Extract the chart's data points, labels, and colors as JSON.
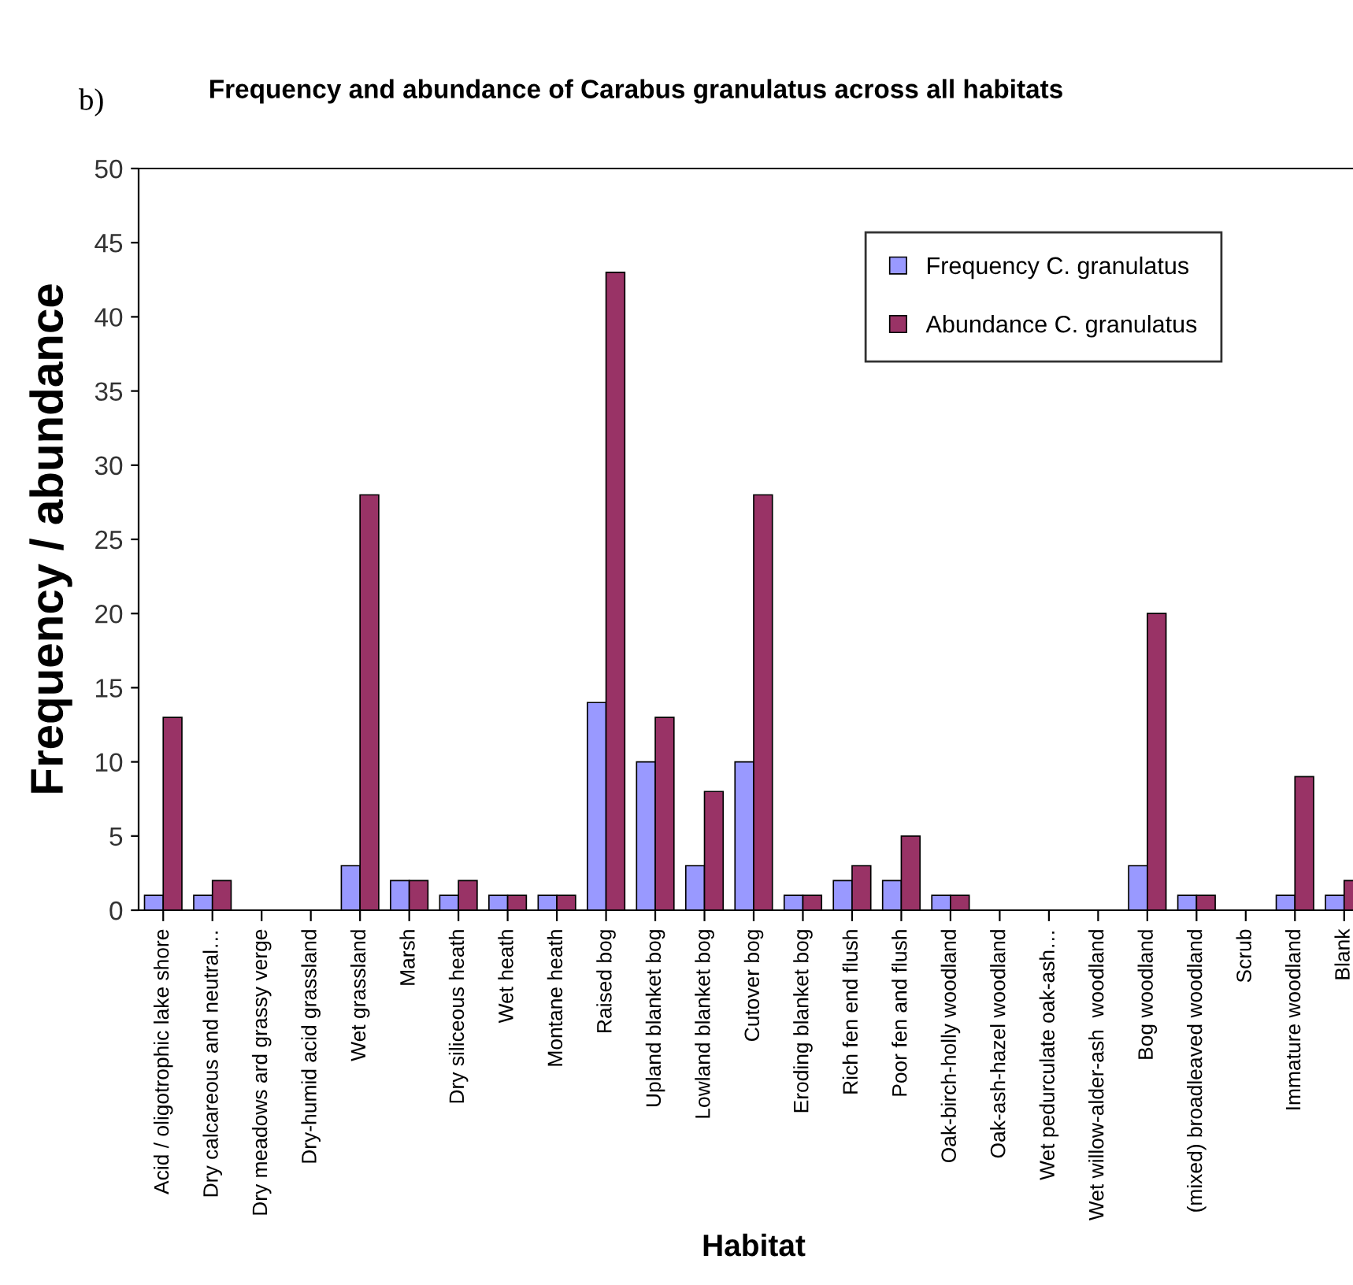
{
  "chart_data": {
    "type": "bar",
    "title": "Frequency and abundance of Carabus granulatus across all habitats",
    "xlabel": "Habitat",
    "ylabel": "Frequency / abundance",
    "annotations": [
      "b)"
    ],
    "categories": [
      "Acid / oligotrophic lake shore",
      "Dry calcareous and neutral…",
      "Dry meadows ard grassy verge",
      "Dry-humid acid grassland",
      "Wet grassland",
      "Marsh",
      "Dry siliceous heath",
      "Wet heath",
      "Montane heath",
      "Raised bog",
      "Upland blanket bog",
      "Lowland blanket bog",
      "Cutover bog",
      "Eroding blanket bog",
      "Rich fen end flush",
      "Poor fen and flush",
      "Oak-birch-holly woodland",
      "Oak-ash-hazel woodland",
      "Wet pedurculate oak-ash…",
      "Wet willow-alder-ash  woodland",
      "Bog woodland",
      "(mixed) broadleaved woodland",
      "Scrub",
      "Immature woodland",
      "Blank"
    ],
    "series": [
      {
        "name": "Frequency C. granulatus",
        "color": "#9999ff",
        "values": [
          1,
          1,
          0,
          0,
          3,
          2,
          1,
          1,
          1,
          14,
          10,
          3,
          10,
          1,
          2,
          2,
          1,
          0,
          0,
          0,
          3,
          1,
          0,
          1,
          1
        ]
      },
      {
        "name": "Abundance C. granulatus",
        "color": "#993366",
        "values": [
          13,
          2,
          0,
          0,
          28,
          2,
          2,
          1,
          1,
          43,
          13,
          8,
          28,
          1,
          3,
          5,
          1,
          0,
          0,
          0,
          20,
          1,
          0,
          9,
          2
        ]
      }
    ],
    "ylim": [
      0,
      50
    ],
    "yticks": [
      0,
      5,
      10,
      15,
      20,
      25,
      30,
      35,
      40,
      45,
      50
    ],
    "grid": false,
    "legend": "top right"
  }
}
